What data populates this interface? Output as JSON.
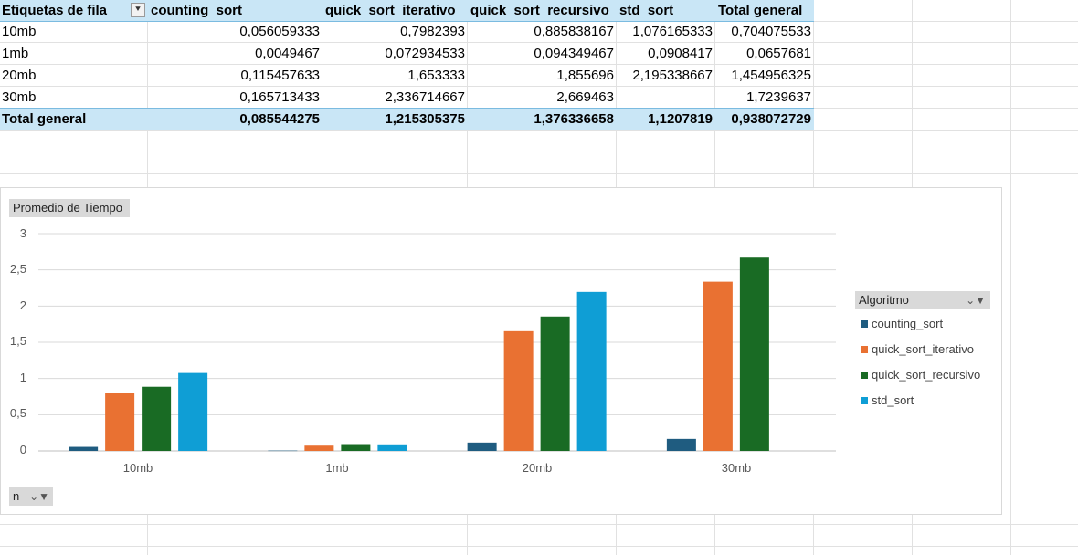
{
  "pivot": {
    "header": {
      "row_label": "Etiquetas de fila",
      "columns": [
        "counting_sort",
        "quick_sort_iterativo",
        "quick_sort_recursivo",
        "std_sort",
        "Total general"
      ]
    },
    "rows": [
      {
        "label": "10mb",
        "values": [
          "0,056059333",
          "0,7982393",
          "0,885838167",
          "1,076165333",
          "0,704075533"
        ]
      },
      {
        "label": "1mb",
        "values": [
          "0,0049467",
          "0,072934533",
          "0,094349467",
          "0,0908417",
          "0,0657681"
        ]
      },
      {
        "label": "20mb",
        "values": [
          "0,115457633",
          "1,653333",
          "1,855696",
          "2,195338667",
          "1,454956325"
        ]
      },
      {
        "label": "30mb",
        "values": [
          "0,165713433",
          "2,336714667",
          "2,669463",
          "",
          "1,7239637"
        ]
      }
    ],
    "total": {
      "label": "Total general",
      "values": [
        "0,085544275",
        "1,215305375",
        "1,376336658",
        "1,1207819",
        "0,938072729"
      ]
    }
  },
  "chart_field_buttons": {
    "value_field": "Promedio de Tiempo",
    "legend_field": "Algoritmo",
    "axis_field": "n"
  },
  "chart_data": {
    "type": "bar",
    "categories": [
      "10mb",
      "1mb",
      "20mb",
      "30mb"
    ],
    "series": [
      {
        "name": "counting_sort",
        "color": "#1f5c80",
        "values": [
          0.056059333,
          0.0049467,
          0.115457633,
          0.165713433
        ]
      },
      {
        "name": "quick_sort_iterativo",
        "color": "#e97132",
        "values": [
          0.7982393,
          0.072934533,
          1.653333,
          2.336714667
        ]
      },
      {
        "name": "quick_sort_recursivo",
        "color": "#196b24",
        "values": [
          0.885838167,
          0.094349467,
          1.855696,
          2.669463
        ]
      },
      {
        "name": "std_sort",
        "color": "#0f9ed5",
        "values": [
          1.076165333,
          0.0908417,
          2.195338667,
          null
        ]
      }
    ],
    "ylim": [
      0,
      3
    ],
    "yticks": [
      "0",
      "0,5",
      "1",
      "1,5",
      "2",
      "2,5",
      "3"
    ],
    "grid": true,
    "legend_position": "right"
  }
}
